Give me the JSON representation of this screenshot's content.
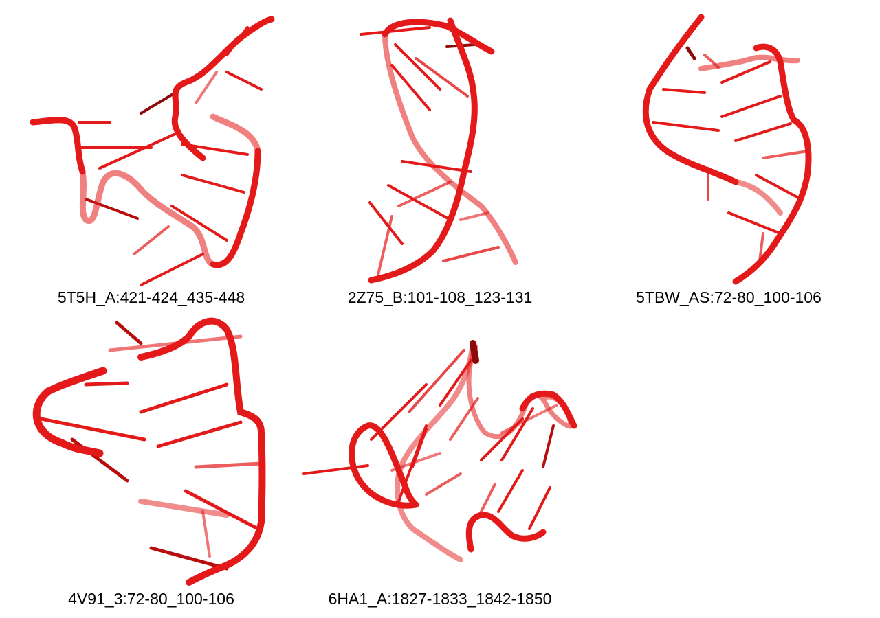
{
  "figure": {
    "structures": [
      {
        "label": "5T5H_A:421-424_435-448"
      },
      {
        "label": "2Z75_B:101-108_123-131"
      },
      {
        "label": "5TBW_AS:72-80_100-106"
      },
      {
        "label": "4V91_3:72-80_100-106"
      },
      {
        "label": "6HA1_A:1827-1833_1842-1850"
      }
    ],
    "colors": {
      "backbone": "#e41a1a",
      "backbone_dark": "#b80d0d",
      "base": "#e82020",
      "background": "#ffffff"
    }
  }
}
